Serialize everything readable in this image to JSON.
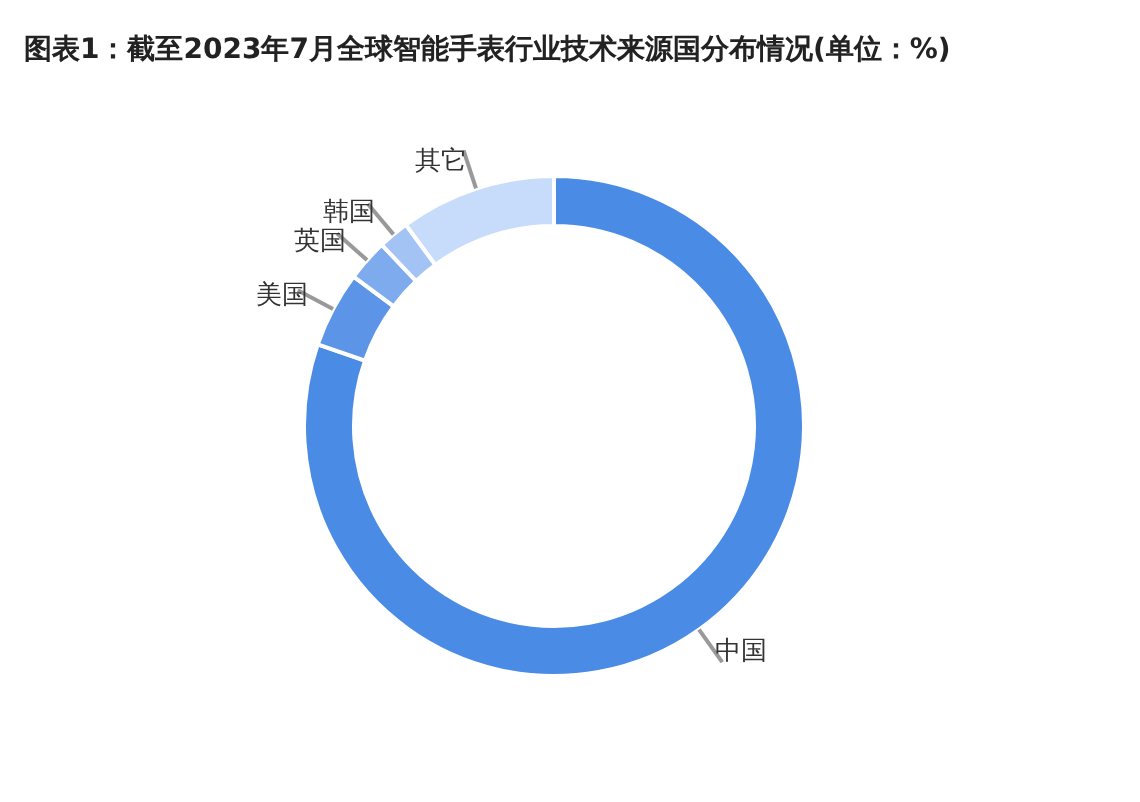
{
  "chart_data": {
    "type": "donut",
    "title": "图表1：截至2023年7月全球智能手表行业技术来源国分布情况(单位：%)",
    "categories": [
      "中国",
      "美国",
      "英国",
      "韩国",
      "其它"
    ],
    "values": [
      80.3,
      4.9,
      2.7,
      2.0,
      10.1
    ],
    "colors": [
      "#4a8be6",
      "#5c95e8",
      "#7eaaee",
      "#a3c3f4",
      "#c6dcfa"
    ],
    "legend": false
  }
}
